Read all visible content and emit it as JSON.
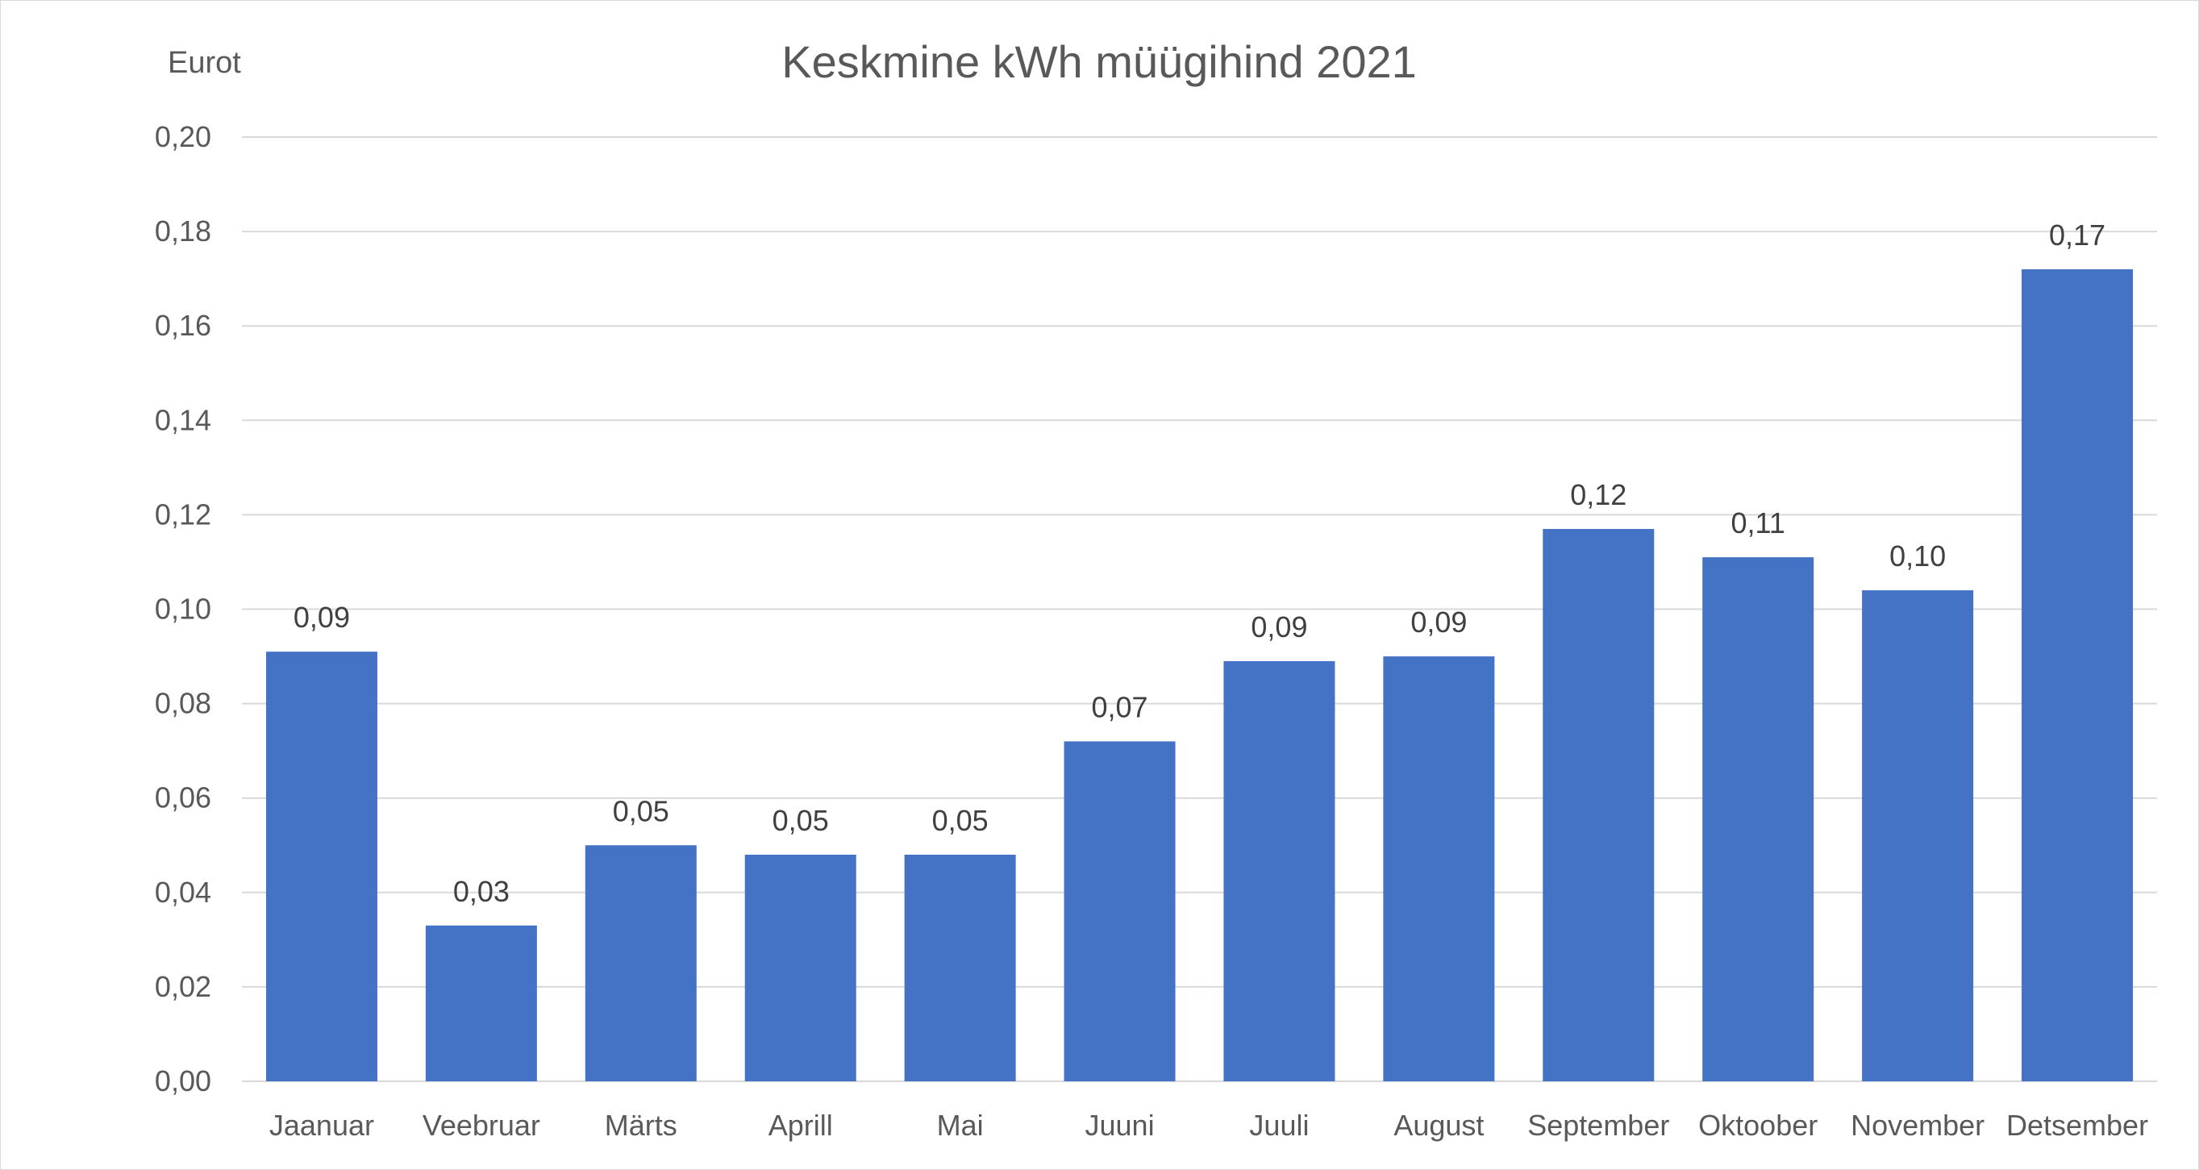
{
  "chart_data": {
    "type": "bar",
    "title": "Keskmine kWh müügihind 2021",
    "ylabel": "Eurot",
    "xlabel": "",
    "categories": [
      "Jaanuar",
      "Veebruar",
      "Märts",
      "Aprill",
      "Mai",
      "Juuni",
      "Juuli",
      "August",
      "September",
      "Oktoober",
      "November",
      "Detsember"
    ],
    "values": [
      0.091,
      0.033,
      0.05,
      0.048,
      0.048,
      0.072,
      0.089,
      0.09,
      0.117,
      0.111,
      0.104,
      0.172
    ],
    "data_labels": [
      "0,09",
      "0,03",
      "0,05",
      "0,05",
      "0,05",
      "0,07",
      "0,09",
      "0,09",
      "0,12",
      "0,11",
      "0,10",
      "0,17"
    ],
    "ylim": [
      0,
      0.2
    ],
    "yticks": [
      0,
      0.02,
      0.04,
      0.06,
      0.08,
      0.1,
      0.12,
      0.14,
      0.16,
      0.18,
      0.2
    ],
    "ytick_labels": [
      "0,00",
      "0,02",
      "0,04",
      "0,06",
      "0,08",
      "0,10",
      "0,12",
      "0,14",
      "0,16",
      "0,18",
      "0,20"
    ],
    "grid": true,
    "legend": "none",
    "bar_color": "#4472c4"
  }
}
